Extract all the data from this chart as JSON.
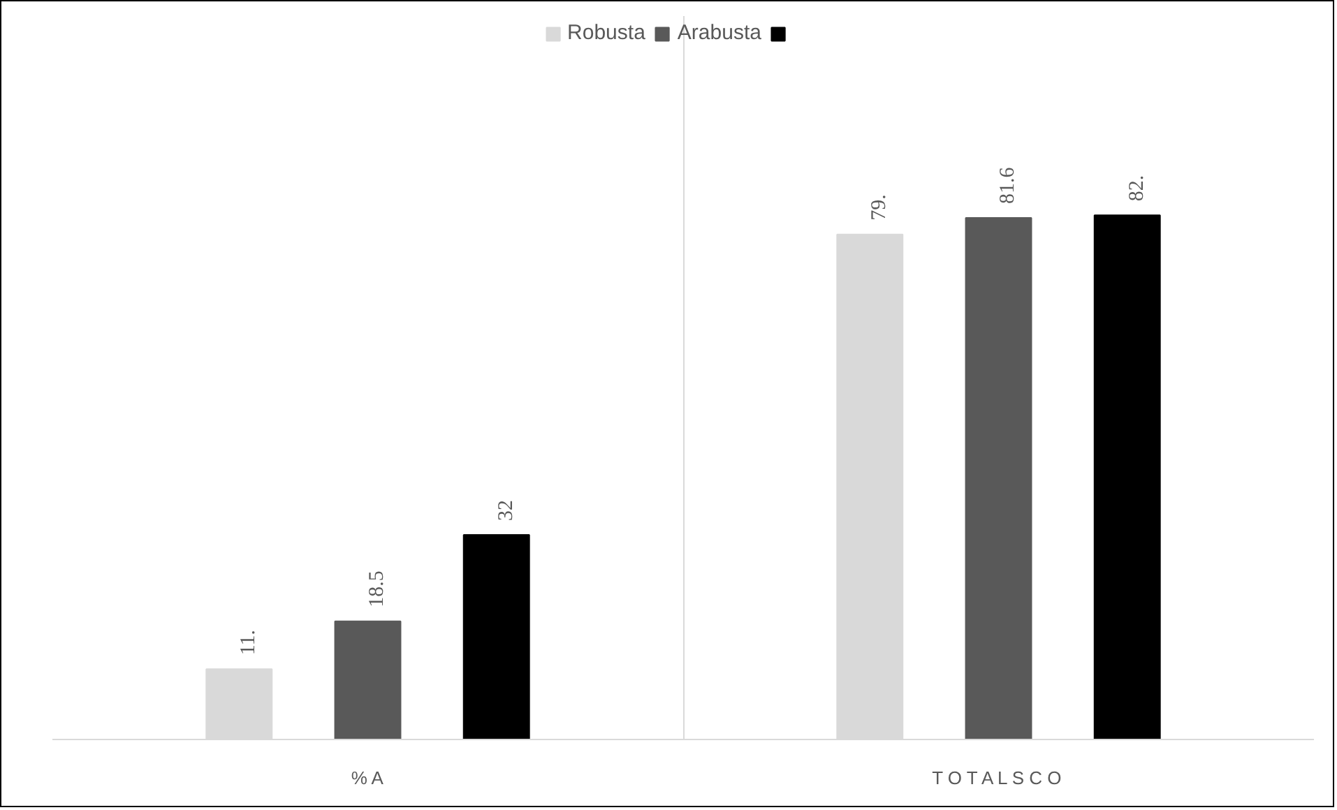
{
  "chart_data": {
    "type": "bar",
    "categories": [
      "% A",
      "T O T A L S C O"
    ],
    "series": [
      {
        "name": "Robusta",
        "color": "#d9d9d9",
        "values": [
          11,
          79
        ],
        "value_labels": [
          "11.",
          "79."
        ]
      },
      {
        "name": "Arabusta",
        "color": "#595959",
        "values": [
          18.5,
          81.6
        ],
        "value_labels": [
          "18.5",
          "81.6"
        ]
      },
      {
        "color": "#000000",
        "values": [
          32,
          82
        ],
        "value_labels": [
          "32",
          "82."
        ]
      }
    ],
    "legend": "top",
    "grid": "x"
  }
}
